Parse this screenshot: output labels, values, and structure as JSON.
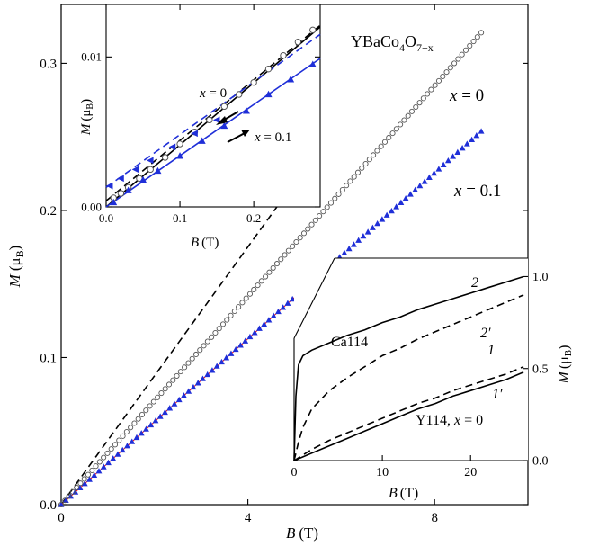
{
  "chart_data": [
    {
      "type": "scatter",
      "title": "YBaCo4O7+x",
      "title_parts": {
        "main": "YBaCo",
        "sub1": "4",
        "mid": "O",
        "sub2": "7+x"
      },
      "xlabel": "B (T)",
      "ylabel": "M (μB)",
      "axis_parts": {
        "x_var": "B",
        "x_unit": "(T)",
        "y_var": "M",
        "y_unit_open": "(μ",
        "y_unit_sub": "B",
        "y_unit_close": ")"
      },
      "xlim": [
        0,
        10
      ],
      "ylim": [
        0,
        0.34
      ],
      "xticks": [
        0,
        4,
        8
      ],
      "xtick_labels": [
        "0",
        "4",
        "8"
      ],
      "yticks": [
        0.0,
        0.1,
        0.2,
        0.3
      ],
      "ytick_labels": [
        "0.0",
        "0.1",
        "0.2",
        "0.3"
      ],
      "series": [
        {
          "name": "x = 0",
          "marker": "open-circle",
          "color": "#555555",
          "x_start": 0.0,
          "x_end": 9.0,
          "n_points": 110,
          "slope": 0.0352,
          "curvature": 5e-05
        },
        {
          "name": "x = 0.1",
          "marker": "filled-triangle",
          "color": "#1f2fd8",
          "x_start": 0.0,
          "x_end": 9.0,
          "n_points": 90,
          "slope": 0.0282,
          "curvature": 0.0
        },
        {
          "name": "",
          "style": "dashed",
          "color": "#000000",
          "x": [
            0.0,
            5.0
          ],
          "y": [
            0.0,
            0.219
          ]
        },
        {
          "name": "",
          "style": "solid-thin",
          "color": "#ff0000",
          "x": [
            0.0,
            5.5
          ],
          "y": [
            0.0,
            0.155
          ]
        }
      ],
      "annotations": [
        {
          "text_var": "x",
          "text_rest": " = 0"
        },
        {
          "text_var": "x",
          "text_rest": " = 0.1"
        }
      ]
    },
    {
      "type": "line",
      "title": "",
      "xlabel": "B (T)",
      "ylabel": "M (μB)",
      "xlim": [
        0,
        0.29
      ],
      "ylim": [
        0,
        0.0135
      ],
      "xticks": [
        0.0,
        0.1,
        0.2
      ],
      "xtick_labels": [
        "0.0",
        "0.1",
        "0.2"
      ],
      "yticks": [
        0.0,
        0.01
      ],
      "ytick_labels": [
        "0.00",
        "0.01"
      ],
      "series": [
        {
          "name": "x = 0",
          "marker": "open-circle",
          "color": "#555555",
          "x": [
            0.01,
            0.02,
            0.03,
            0.045,
            0.06,
            0.08,
            0.1,
            0.12,
            0.14,
            0.16,
            0.18,
            0.2,
            0.22,
            0.24,
            0.26,
            0.28
          ],
          "y": [
            0.0006,
            0.0009,
            0.0013,
            0.0019,
            0.0025,
            0.0033,
            0.0042,
            0.005,
            0.0058,
            0.0067,
            0.0075,
            0.0083,
            0.0092,
            0.0101,
            0.011,
            0.0118
          ]
        },
        {
          "name": "x = 0 fit",
          "style": "solid",
          "color": "#000000",
          "x": [
            0.0,
            0.29
          ],
          "y": [
            0.0,
            0.012
          ]
        },
        {
          "name": "x = 0 dashed",
          "style": "dashed",
          "color": "#000000",
          "x": [
            0.0,
            0.29
          ],
          "y": [
            0.0004,
            0.0121
          ]
        },
        {
          "name": "x = 0.1",
          "marker": "filled-triangle",
          "color": "#1f2fd8",
          "x": [
            0.01,
            0.03,
            0.05,
            0.07,
            0.1,
            0.13,
            0.16,
            0.19,
            0.22,
            0.25,
            0.28
          ],
          "y": [
            0.0003,
            0.0011,
            0.0018,
            0.0024,
            0.0034,
            0.0044,
            0.0054,
            0.0064,
            0.0075,
            0.0085,
            0.0095
          ]
        },
        {
          "name": "x = 0.1 decreasing",
          "marker": "filled-triangle-left",
          "color": "#1f2fd8",
          "x": [
            0.005,
            0.02,
            0.04,
            0.06,
            0.09,
            0.12,
            0.15
          ],
          "y": [
            0.0014,
            0.0019,
            0.0025,
            0.0031,
            0.004,
            0.0049,
            0.0058
          ]
        },
        {
          "name": "x = 0.1 fit",
          "style": "solid",
          "color": "#1f2fd8",
          "x": [
            0.0,
            0.29
          ],
          "y": [
            0.0,
            0.0099
          ]
        },
        {
          "name": "x = 0.1 down fit",
          "style": "dashed",
          "color": "#1f2fd8",
          "x": [
            0.0,
            0.29
          ],
          "y": [
            0.0013,
            0.0115
          ]
        }
      ],
      "annotations": [
        {
          "text_var": "x",
          "text_rest": " = 0"
        },
        {
          "text_var": "x",
          "text_rest": " = 0.1"
        }
      ]
    },
    {
      "type": "line",
      "title": "",
      "xlabel": "B (T)",
      "ylabel": "M (μB)",
      "xlim": [
        0,
        26.5
      ],
      "ylim": [
        0,
        1.1
      ],
      "xticks": [
        0,
        10,
        20
      ],
      "xtick_labels": [
        "0",
        "10",
        "20"
      ],
      "yticks": [
        0.0,
        0.5,
        1.0
      ],
      "ytick_labels": [
        "0.0",
        "0.5",
        "1.0"
      ],
      "series": [
        {
          "name": "2",
          "style": "solid",
          "color": "#000000",
          "x": [
            0,
            0.2,
            0.5,
            1,
            2,
            4,
            6,
            8,
            10,
            12,
            14,
            16,
            18,
            20,
            22,
            24,
            26
          ],
          "y": [
            0.0,
            0.35,
            0.52,
            0.57,
            0.6,
            0.64,
            0.68,
            0.71,
            0.75,
            0.78,
            0.82,
            0.85,
            0.88,
            0.91,
            0.94,
            0.97,
            1.0
          ]
        },
        {
          "name": "2′",
          "style": "dashed",
          "color": "#000000",
          "x": [
            0,
            0.5,
            1,
            2,
            4,
            6,
            8,
            10,
            12,
            14,
            16,
            18,
            20,
            22,
            24,
            26
          ],
          "y": [
            0.0,
            0.1,
            0.18,
            0.28,
            0.38,
            0.45,
            0.51,
            0.57,
            0.61,
            0.66,
            0.7,
            0.74,
            0.78,
            0.82,
            0.86,
            0.9
          ]
        },
        {
          "name": "1",
          "style": "dashed",
          "color": "#000000",
          "x": [
            0,
            2,
            4,
            6,
            8,
            10,
            12,
            14,
            16,
            18,
            20,
            22,
            24,
            26
          ],
          "y": [
            0.0,
            0.06,
            0.11,
            0.15,
            0.19,
            0.23,
            0.27,
            0.31,
            0.34,
            0.38,
            0.41,
            0.44,
            0.47,
            0.51
          ]
        },
        {
          "name": "1′",
          "style": "solid",
          "color": "#000000",
          "x": [
            0,
            2,
            4,
            6,
            8,
            10,
            12,
            14,
            16,
            18,
            20,
            22,
            24,
            26
          ],
          "y": [
            0.0,
            0.04,
            0.08,
            0.12,
            0.16,
            0.2,
            0.24,
            0.28,
            0.31,
            0.35,
            0.38,
            0.41,
            0.44,
            0.48
          ]
        }
      ],
      "annotations": [
        {
          "text": "Ca114"
        },
        {
          "text": "Y114, ",
          "text_var": "x",
          "text_rest": " = 0"
        },
        {
          "text": "2"
        },
        {
          "text": "2′"
        },
        {
          "text": "1"
        },
        {
          "text": "1′"
        }
      ]
    }
  ]
}
